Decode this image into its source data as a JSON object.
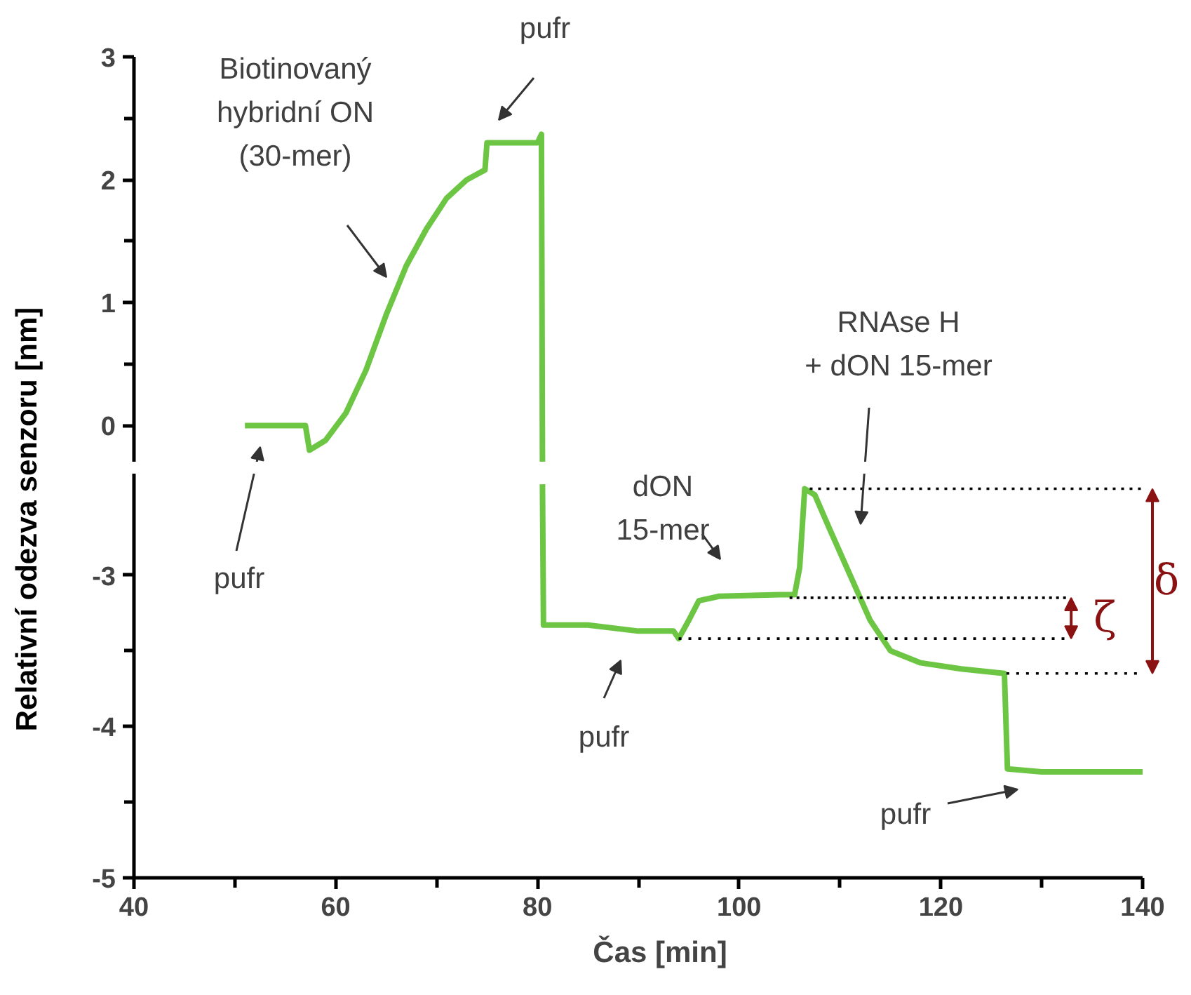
{
  "chart_data": [
    {
      "type": "line",
      "ylabel": "Relativní odezva senzoru [nm]",
      "xlim": [
        40,
        140
      ],
      "ylim": [
        -0.3,
        3
      ],
      "yticks": [
        0,
        1,
        2,
        3
      ],
      "grid": false,
      "tick_labels": "y",
      "series": [
        {
          "color": "#6cc644",
          "x": [
            51,
            57,
            57.4,
            59,
            61,
            63,
            65,
            67,
            69,
            71,
            73,
            74.8,
            75,
            80,
            80.4,
            80.5
          ],
          "values": [
            0,
            0,
            -0.2,
            -0.12,
            0.1,
            0.45,
            0.9,
            1.3,
            1.6,
            1.85,
            2.0,
            2.08,
            2.3,
            2.3,
            2.37,
            -0.3
          ]
        }
      ],
      "annotations": [
        "Biotinovaný\nhybridní ON\n(30-mer)",
        "pufr",
        "RNAse H\n+ dON 15-mer"
      ]
    },
    {
      "type": "line",
      "xlabel": "Čas [min]",
      "xlim": [
        40,
        140
      ],
      "xticks": [
        40,
        60,
        80,
        100,
        120,
        140
      ],
      "ylim": [
        -5,
        -2.33
      ],
      "yticks": [
        -5,
        -4,
        -3
      ],
      "grid": false,
      "series": [
        {
          "color": "#6cc644",
          "x": [
            80.5,
            80.6,
            85,
            90,
            93.5,
            94,
            95,
            96,
            98,
            104,
            105.5,
            106,
            106.5,
            107.5,
            109,
            111,
            113,
            115,
            118,
            122,
            126.3,
            126.6,
            130,
            140
          ],
          "values": [
            -2.4,
            -3.33,
            -3.33,
            -3.37,
            -3.37,
            -3.42,
            -3.3,
            -3.17,
            -3.14,
            -3.13,
            -3.13,
            -2.95,
            -2.43,
            -2.47,
            -2.7,
            -3.0,
            -3.3,
            -3.5,
            -3.58,
            -3.62,
            -3.65,
            -4.28,
            -4.3,
            -4.3
          ]
        },
        {
          "color": "#000000",
          "line_style": "dotted",
          "x": [
            107,
            140
          ],
          "values": [
            -2.43,
            -2.43
          ]
        },
        {
          "color": "#000000",
          "line_style": "dotted",
          "x": [
            105,
            132.5
          ],
          "values": [
            -3.15,
            -3.15
          ]
        },
        {
          "color": "#000000",
          "line_style": "dotted",
          "x": [
            94,
            132.5
          ],
          "values": [
            -3.42,
            -3.42
          ]
        },
        {
          "color": "#000000",
          "line_style": "dotted",
          "x": [
            126.5,
            140
          ],
          "values": [
            -3.65,
            -3.65
          ]
        }
      ],
      "annotations": [
        "pufr",
        "pufr",
        "dON\n15-mer",
        "pufr",
        "ζ",
        "δ"
      ]
    }
  ]
}
